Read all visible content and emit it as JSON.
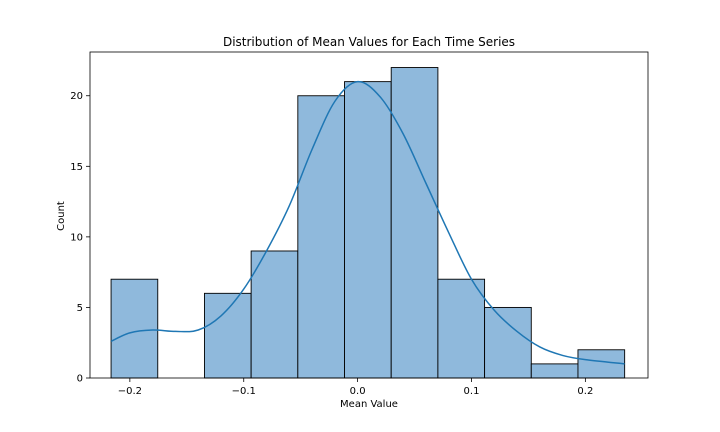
{
  "chart_data": {
    "type": "bar",
    "title": "Distribution of Mean Values for Each Time Series",
    "xlabel": "Mean Value",
    "ylabel": "Count",
    "xlim": [
      -0.235,
      0.255
    ],
    "ylim": [
      0,
      23.1
    ],
    "bin_edges": [
      -0.2165,
      -0.1755,
      -0.1345,
      -0.0935,
      -0.0525,
      -0.0115,
      0.0295,
      0.0705,
      0.1115,
      0.1525,
      0.1935,
      0.2345
    ],
    "counts": [
      7,
      0,
      6,
      9,
      20,
      21,
      22,
      7,
      5,
      1,
      2
    ],
    "x_ticks": [
      -0.2,
      -0.1,
      0.0,
      0.1,
      0.2
    ],
    "x_tick_labels": [
      "−0.2",
      "−0.1",
      "0.0",
      "0.1",
      "0.2"
    ],
    "y_ticks": [
      0,
      5,
      10,
      15,
      20
    ],
    "y_tick_labels": [
      "0",
      "5",
      "10",
      "15",
      "20"
    ],
    "kde": {
      "x": [
        -0.2165,
        -0.2,
        -0.18,
        -0.16,
        -0.14,
        -0.12,
        -0.1,
        -0.08,
        -0.06,
        -0.04,
        -0.02,
        0.0,
        0.02,
        0.04,
        0.06,
        0.08,
        0.1,
        0.12,
        0.14,
        0.16,
        0.18,
        0.2,
        0.2345
      ],
      "y": [
        2.6,
        3.2,
        3.4,
        3.3,
        3.4,
        4.4,
        6.3,
        9.0,
        12.2,
        16.2,
        19.6,
        21.0,
        19.9,
        17.3,
        13.8,
        10.3,
        7.0,
        4.8,
        3.3,
        2.2,
        1.6,
        1.3,
        1.0
      ]
    },
    "grid": false,
    "colors": {
      "bar_fill": "#8fb9dc",
      "bar_edge": "#000000",
      "kde_line": "#1f77b4"
    }
  }
}
